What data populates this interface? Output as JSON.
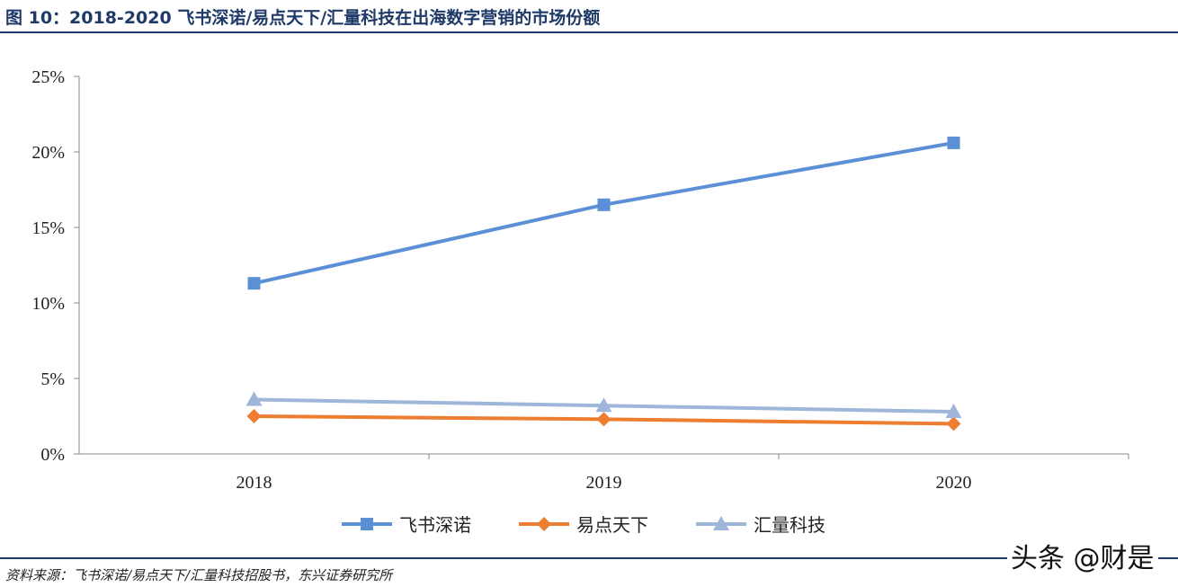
{
  "title": "图 10：2018-2020 飞书深诺/易点天下/汇量科技在出海数字营销的市场份额",
  "source": "资料来源：飞书深诺/易点天下/汇量科技招股书，东兴证券研究所",
  "watermark": "头条 @财是",
  "chart_data": {
    "type": "line",
    "categories": [
      "2018",
      "2019",
      "2020"
    ],
    "ylim": [
      0,
      25
    ],
    "yticks": [
      "0%",
      "5%",
      "10%",
      "15%",
      "20%",
      "25%"
    ],
    "grid": false,
    "legend_position": "bottom",
    "series": [
      {
        "name": "飞书深诺",
        "values": [
          11.3,
          16.5,
          20.6
        ],
        "color": "#5b8fd6",
        "marker": "square"
      },
      {
        "name": "易点天下",
        "values": [
          2.5,
          2.3,
          2.0
        ],
        "color": "#ed7d31",
        "marker": "diamond"
      },
      {
        "name": "汇量科技",
        "values": [
          3.6,
          3.2,
          2.8
        ],
        "color": "#9db6d9",
        "marker": "triangle"
      }
    ]
  }
}
